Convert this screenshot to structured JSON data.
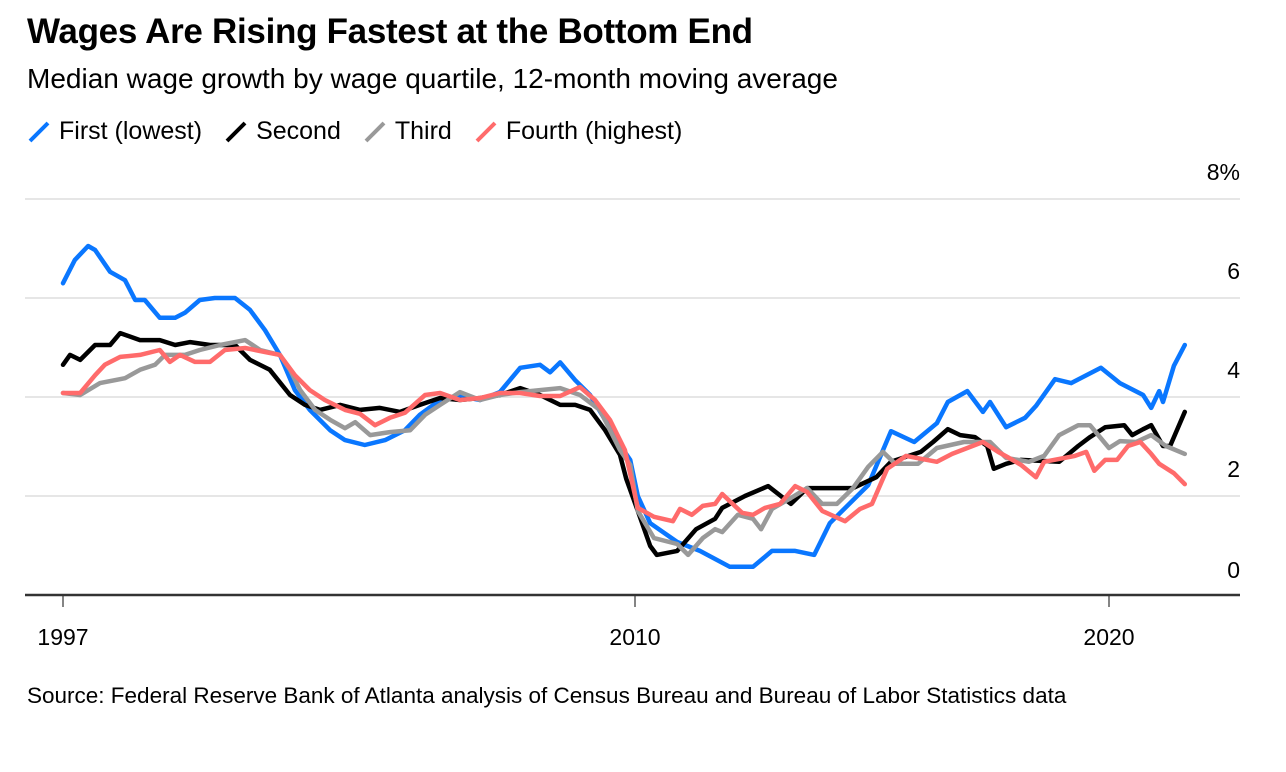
{
  "chart_data": {
    "type": "line",
    "title": "Wages Are Rising Fastest at the Bottom End",
    "subtitle": "Median wage growth by wage quartile, 12-month moving average",
    "source": "Source: Federal Reserve Bank of Atlanta analysis of Census Bureau and Bureau of Labor Statistics data",
    "xlabel": "",
    "ylabel": "",
    "ylim": [
      0,
      8
    ],
    "xlim": [
      1997,
      2021.6
    ],
    "yticks": [
      {
        "v": 8,
        "label": "8%"
      },
      {
        "v": 6,
        "label": "6"
      },
      {
        "v": 4,
        "label": "4"
      },
      {
        "v": 2,
        "label": "2"
      },
      {
        "v": 0,
        "label": "0"
      }
    ],
    "xticks": [
      {
        "v": 1997,
        "label": "1997"
      },
      {
        "v": 2010,
        "label": "2010"
      },
      {
        "v": 2020,
        "label": "2020"
      }
    ],
    "grid": true,
    "legend_position": "top-left",
    "series": [
      {
        "name": "First (lowest)",
        "color": "#0a77ff",
        "points": [
          [
            1997.0,
            6.3
          ],
          [
            1997.27,
            6.77
          ],
          [
            1997.57,
            7.05
          ],
          [
            1997.73,
            6.97
          ],
          [
            1998.07,
            6.53
          ],
          [
            1998.41,
            6.36
          ],
          [
            1998.64,
            5.96
          ],
          [
            1998.86,
            5.96
          ],
          [
            1999.2,
            5.6
          ],
          [
            1999.55,
            5.6
          ],
          [
            1999.77,
            5.7
          ],
          [
            2000.11,
            5.96
          ],
          [
            2000.45,
            6.0
          ],
          [
            2000.91,
            6.0
          ],
          [
            2001.25,
            5.76
          ],
          [
            2001.59,
            5.35
          ],
          [
            2001.93,
            4.85
          ],
          [
            2002.27,
            4.14
          ],
          [
            2002.61,
            3.74
          ],
          [
            2003.07,
            3.33
          ],
          [
            2003.41,
            3.13
          ],
          [
            2003.86,
            3.03
          ],
          [
            2004.32,
            3.13
          ],
          [
            2004.77,
            3.33
          ],
          [
            2005.11,
            3.64
          ],
          [
            2005.57,
            3.94
          ],
          [
            2006.02,
            4.02
          ],
          [
            2006.48,
            3.94
          ],
          [
            2006.93,
            4.1
          ],
          [
            2007.39,
            4.59
          ],
          [
            2007.84,
            4.65
          ],
          [
            2008.07,
            4.5
          ],
          [
            2008.3,
            4.7
          ],
          [
            2008.64,
            4.34
          ],
          [
            2008.98,
            4.04
          ],
          [
            2009.32,
            3.54
          ],
          [
            2009.66,
            3.03
          ],
          [
            2009.89,
            2.73
          ],
          [
            2010.06,
            2.0
          ],
          [
            2010.32,
            1.45
          ],
          [
            2010.89,
            1.07
          ],
          [
            2011.37,
            0.89
          ],
          [
            2012.0,
            0.57
          ],
          [
            2012.49,
            0.57
          ],
          [
            2012.89,
            0.89
          ],
          [
            2013.38,
            0.89
          ],
          [
            2013.78,
            0.81
          ],
          [
            2014.11,
            1.45
          ],
          [
            2014.92,
            2.22
          ],
          [
            2015.4,
            3.31
          ],
          [
            2015.89,
            3.09
          ],
          [
            2016.37,
            3.47
          ],
          [
            2016.6,
            3.9
          ],
          [
            2017.01,
            4.12
          ],
          [
            2017.34,
            3.7
          ],
          [
            2017.49,
            3.9
          ],
          [
            2017.83,
            3.39
          ],
          [
            2018.23,
            3.58
          ],
          [
            2018.46,
            3.82
          ],
          [
            2018.86,
            4.36
          ],
          [
            2019.2,
            4.28
          ],
          [
            2019.83,
            4.59
          ],
          [
            2020.23,
            4.28
          ],
          [
            2020.72,
            4.04
          ],
          [
            2020.89,
            3.78
          ],
          [
            2021.06,
            4.12
          ],
          [
            2021.14,
            3.9
          ],
          [
            2021.37,
            4.63
          ],
          [
            2021.6,
            5.05
          ]
        ]
      },
      {
        "name": "Second",
        "color": "#000000",
        "points": [
          [
            1997.0,
            4.65
          ],
          [
            1997.16,
            4.85
          ],
          [
            1997.39,
            4.75
          ],
          [
            1997.73,
            5.05
          ],
          [
            1998.07,
            5.05
          ],
          [
            1998.3,
            5.29
          ],
          [
            1998.75,
            5.15
          ],
          [
            1999.2,
            5.15
          ],
          [
            1999.55,
            5.05
          ],
          [
            1999.89,
            5.11
          ],
          [
            2000.34,
            5.05
          ],
          [
            2000.91,
            5.05
          ],
          [
            2001.25,
            4.75
          ],
          [
            2001.7,
            4.55
          ],
          [
            2002.16,
            4.04
          ],
          [
            2002.5,
            3.84
          ],
          [
            2002.84,
            3.74
          ],
          [
            2003.3,
            3.84
          ],
          [
            2003.75,
            3.74
          ],
          [
            2004.2,
            3.78
          ],
          [
            2004.66,
            3.7
          ],
          [
            2005.11,
            3.84
          ],
          [
            2005.57,
            3.98
          ],
          [
            2006.02,
            3.94
          ],
          [
            2006.48,
            3.98
          ],
          [
            2006.93,
            4.04
          ],
          [
            2007.39,
            4.18
          ],
          [
            2007.84,
            4.04
          ],
          [
            2008.3,
            3.84
          ],
          [
            2008.64,
            3.84
          ],
          [
            2008.98,
            3.74
          ],
          [
            2009.32,
            3.33
          ],
          [
            2009.66,
            2.83
          ],
          [
            2009.8,
            2.35
          ],
          [
            2010.06,
            1.7
          ],
          [
            2010.32,
            0.99
          ],
          [
            2010.46,
            0.81
          ],
          [
            2010.89,
            0.89
          ],
          [
            2011.29,
            1.33
          ],
          [
            2011.69,
            1.54
          ],
          [
            2011.84,
            1.76
          ],
          [
            2012.32,
            2.0
          ],
          [
            2012.81,
            2.2
          ],
          [
            2013.29,
            1.84
          ],
          [
            2013.63,
            2.16
          ],
          [
            2014.11,
            2.16
          ],
          [
            2014.6,
            2.16
          ],
          [
            2015.09,
            2.38
          ],
          [
            2015.4,
            2.69
          ],
          [
            2016.03,
            2.89
          ],
          [
            2016.29,
            3.09
          ],
          [
            2016.6,
            3.35
          ],
          [
            2016.86,
            3.23
          ],
          [
            2017.17,
            3.19
          ],
          [
            2017.43,
            3.01
          ],
          [
            2017.57,
            2.55
          ],
          [
            2017.83,
            2.65
          ],
          [
            2018.14,
            2.73
          ],
          [
            2018.95,
            2.69
          ],
          [
            2019.35,
            3.01
          ],
          [
            2019.6,
            3.19
          ],
          [
            2019.92,
            3.39
          ],
          [
            2020.32,
            3.43
          ],
          [
            2020.49,
            3.23
          ],
          [
            2020.72,
            3.35
          ],
          [
            2020.89,
            3.43
          ],
          [
            2021.14,
            3.01
          ],
          [
            2021.29,
            3.01
          ],
          [
            2021.6,
            3.7
          ]
        ]
      },
      {
        "name": "Third",
        "color": "#999999",
        "points": [
          [
            1997.0,
            4.08
          ],
          [
            1997.39,
            4.04
          ],
          [
            1997.84,
            4.28
          ],
          [
            1998.41,
            4.38
          ],
          [
            1998.75,
            4.55
          ],
          [
            1999.09,
            4.65
          ],
          [
            1999.32,
            4.85
          ],
          [
            1999.77,
            4.85
          ],
          [
            2000.11,
            4.95
          ],
          [
            2000.57,
            5.05
          ],
          [
            2001.14,
            5.15
          ],
          [
            2001.48,
            4.95
          ],
          [
            2001.93,
            4.85
          ],
          [
            2002.16,
            4.55
          ],
          [
            2002.39,
            4.14
          ],
          [
            2002.73,
            3.74
          ],
          [
            2003.07,
            3.54
          ],
          [
            2003.41,
            3.37
          ],
          [
            2003.64,
            3.49
          ],
          [
            2003.98,
            3.23
          ],
          [
            2004.43,
            3.29
          ],
          [
            2004.89,
            3.33
          ],
          [
            2005.23,
            3.64
          ],
          [
            2005.57,
            3.84
          ],
          [
            2006.02,
            4.1
          ],
          [
            2006.48,
            3.94
          ],
          [
            2006.93,
            4.04
          ],
          [
            2007.39,
            4.1
          ],
          [
            2007.84,
            4.14
          ],
          [
            2008.3,
            4.18
          ],
          [
            2008.75,
            4.04
          ],
          [
            2009.2,
            3.74
          ],
          [
            2009.66,
            2.93
          ],
          [
            2009.89,
            2.63
          ],
          [
            2010.06,
            1.7
          ],
          [
            2010.4,
            1.15
          ],
          [
            2010.89,
            1.03
          ],
          [
            2011.12,
            0.81
          ],
          [
            2011.43,
            1.15
          ],
          [
            2011.69,
            1.33
          ],
          [
            2011.84,
            1.27
          ],
          [
            2012.17,
            1.62
          ],
          [
            2012.49,
            1.54
          ],
          [
            2012.66,
            1.33
          ],
          [
            2012.89,
            1.74
          ],
          [
            2013.29,
            1.96
          ],
          [
            2013.63,
            2.16
          ],
          [
            2013.95,
            1.84
          ],
          [
            2014.26,
            1.84
          ],
          [
            2014.6,
            2.16
          ],
          [
            2014.92,
            2.59
          ],
          [
            2015.23,
            2.89
          ],
          [
            2015.49,
            2.65
          ],
          [
            2015.97,
            2.65
          ],
          [
            2016.37,
            2.97
          ],
          [
            2016.94,
            3.09
          ],
          [
            2017.49,
            3.09
          ],
          [
            2017.83,
            2.77
          ],
          [
            2018.31,
            2.69
          ],
          [
            2018.63,
            2.81
          ],
          [
            2018.95,
            3.23
          ],
          [
            2019.35,
            3.43
          ],
          [
            2019.6,
            3.43
          ],
          [
            2020.0,
            2.97
          ],
          [
            2020.23,
            3.11
          ],
          [
            2020.57,
            3.09
          ],
          [
            2020.89,
            3.23
          ],
          [
            2021.2,
            3.01
          ],
          [
            2021.6,
            2.85
          ]
        ]
      },
      {
        "name": "Fourth (highest)",
        "color": "#ff6b6b",
        "points": [
          [
            1997.0,
            4.08
          ],
          [
            1997.39,
            4.08
          ],
          [
            1997.73,
            4.44
          ],
          [
            1997.95,
            4.65
          ],
          [
            1998.3,
            4.81
          ],
          [
            1998.75,
            4.85
          ],
          [
            1999.2,
            4.95
          ],
          [
            1999.43,
            4.71
          ],
          [
            1999.66,
            4.85
          ],
          [
            2000.0,
            4.71
          ],
          [
            2000.34,
            4.71
          ],
          [
            2000.68,
            4.95
          ],
          [
            2001.14,
            4.99
          ],
          [
            2001.59,
            4.91
          ],
          [
            2001.93,
            4.85
          ],
          [
            2002.27,
            4.44
          ],
          [
            2002.61,
            4.14
          ],
          [
            2002.95,
            3.94
          ],
          [
            2003.41,
            3.74
          ],
          [
            2003.75,
            3.66
          ],
          [
            2004.09,
            3.43
          ],
          [
            2004.43,
            3.58
          ],
          [
            2004.77,
            3.68
          ],
          [
            2005.23,
            4.04
          ],
          [
            2005.57,
            4.08
          ],
          [
            2006.02,
            3.94
          ],
          [
            2006.48,
            3.98
          ],
          [
            2006.93,
            4.08
          ],
          [
            2007.39,
            4.08
          ],
          [
            2007.84,
            4.02
          ],
          [
            2008.3,
            4.02
          ],
          [
            2008.75,
            4.2
          ],
          [
            2009.09,
            3.94
          ],
          [
            2009.43,
            3.54
          ],
          [
            2009.77,
            2.93
          ],
          [
            2010.06,
            1.76
          ],
          [
            2010.4,
            1.58
          ],
          [
            2010.8,
            1.49
          ],
          [
            2010.95,
            1.74
          ],
          [
            2011.2,
            1.62
          ],
          [
            2011.43,
            1.8
          ],
          [
            2011.69,
            1.84
          ],
          [
            2011.84,
            2.04
          ],
          [
            2012.26,
            1.66
          ],
          [
            2012.49,
            1.62
          ],
          [
            2012.74,
            1.76
          ],
          [
            2013.06,
            1.84
          ],
          [
            2013.38,
            2.2
          ],
          [
            2013.63,
            2.08
          ],
          [
            2013.95,
            1.7
          ],
          [
            2014.43,
            1.49
          ],
          [
            2014.75,
            1.74
          ],
          [
            2015.0,
            1.84
          ],
          [
            2015.32,
            2.55
          ],
          [
            2015.72,
            2.81
          ],
          [
            2016.37,
            2.69
          ],
          [
            2016.69,
            2.85
          ],
          [
            2017.34,
            3.09
          ],
          [
            2017.66,
            2.89
          ],
          [
            2017.89,
            2.77
          ],
          [
            2018.14,
            2.63
          ],
          [
            2018.46,
            2.38
          ],
          [
            2018.63,
            2.69
          ],
          [
            2019.28,
            2.81
          ],
          [
            2019.52,
            2.89
          ],
          [
            2019.69,
            2.51
          ],
          [
            2019.92,
            2.73
          ],
          [
            2020.17,
            2.73
          ],
          [
            2020.4,
            3.01
          ],
          [
            2020.66,
            3.09
          ],
          [
            2020.89,
            2.85
          ],
          [
            2021.06,
            2.65
          ],
          [
            2021.37,
            2.46
          ],
          [
            2021.6,
            2.24
          ]
        ]
      }
    ]
  }
}
